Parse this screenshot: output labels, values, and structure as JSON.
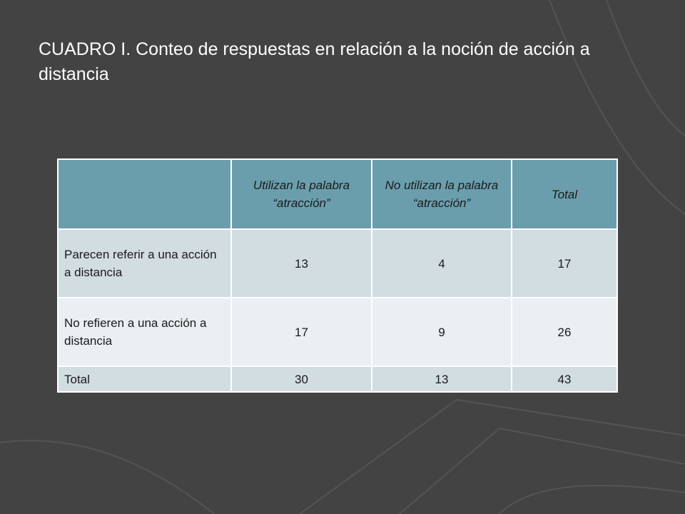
{
  "slide": {
    "title": "CUADRO I. Conteo de respuestas en relación a la noción de acción a distancia"
  },
  "table": {
    "headers": [
      "",
      "Utilizan la palabra “atracción”",
      "No utilizan la palabra “atracción”",
      "Total"
    ],
    "rows": [
      {
        "label": "Parecen referir a una acción a distancia",
        "values": [
          "13",
          "4",
          "17"
        ]
      },
      {
        "label": "No refieren a una acción a distancia",
        "values": [
          "17",
          "9",
          "26"
        ]
      },
      {
        "label": "Total",
        "values": [
          "30",
          "13",
          "43"
        ]
      }
    ]
  },
  "colors": {
    "background": "#434343",
    "decor_stroke": "#545454",
    "header_fill": "#6b9ead",
    "row_fill_odd": "#d2dde2",
    "row_fill_even": "#e9eff2"
  }
}
